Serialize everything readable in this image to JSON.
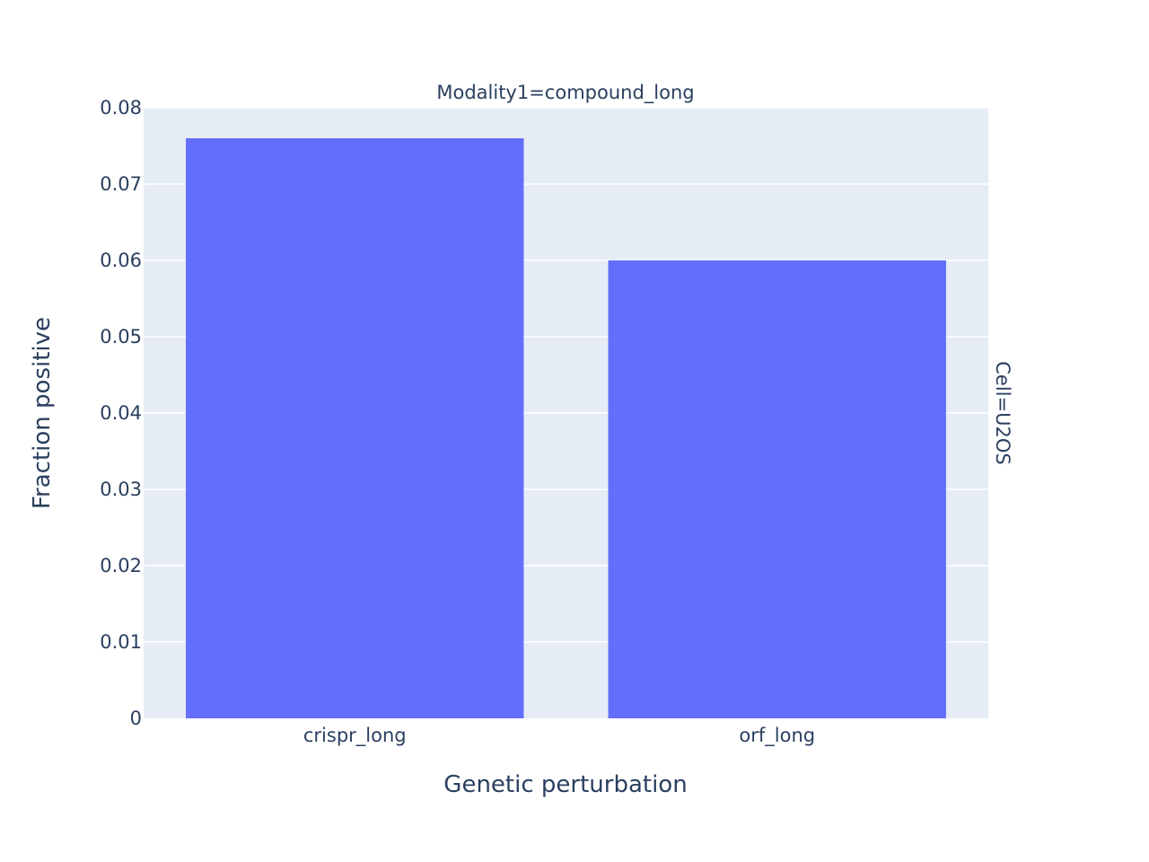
{
  "colors": {
    "plot_bg": "#e5ecf6",
    "grid": "#ffffff",
    "bar": "#636efa",
    "text": "#2a3f5f"
  },
  "chart_data": {
    "type": "bar",
    "categories": [
      "crispr_long",
      "orf_long"
    ],
    "values": [
      0.076,
      0.06
    ],
    "xlabel": "Genetic perturbation",
    "ylabel": "Fraction positive",
    "ylim": [
      0,
      0.08
    ],
    "yticks": [
      "0",
      "0.01",
      "0.02",
      "0.03",
      "0.04",
      "0.05",
      "0.06",
      "0.07",
      "0.08"
    ],
    "facet_col_label": "Modality1=compound_long",
    "facet_row_label": "Cell=U2OS",
    "grid": true
  }
}
